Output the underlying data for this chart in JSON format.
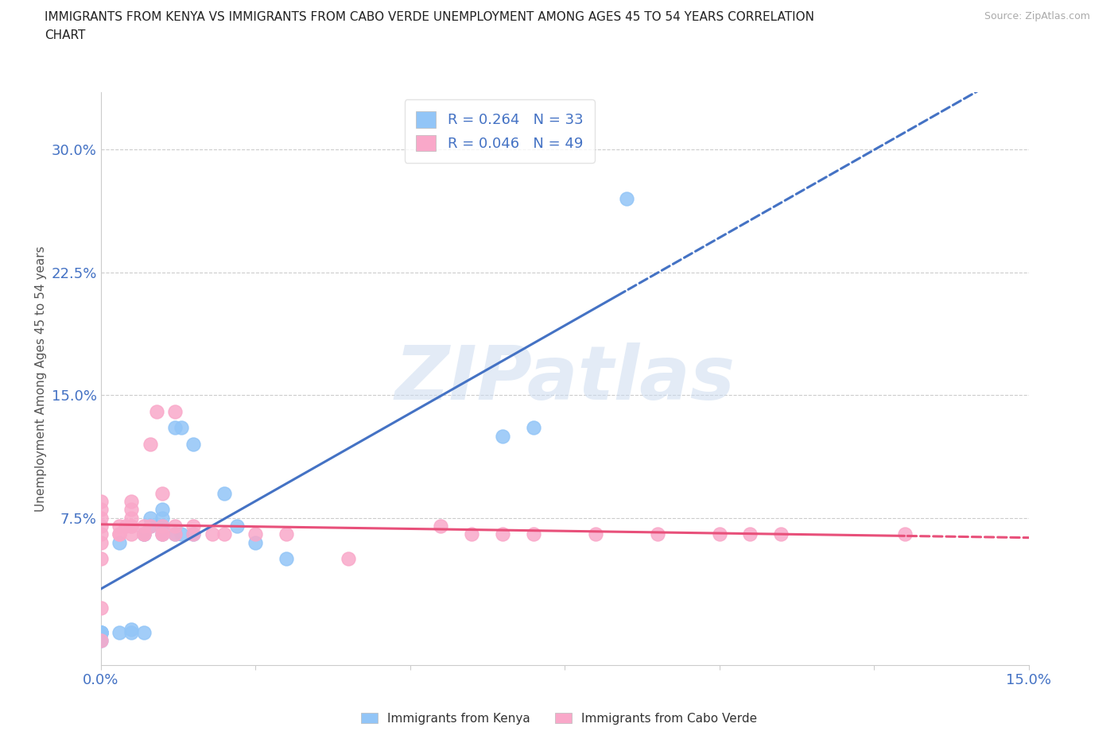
{
  "title_line1": "IMMIGRANTS FROM KENYA VS IMMIGRANTS FROM CABO VERDE UNEMPLOYMENT AMONG AGES 45 TO 54 YEARS CORRELATION",
  "title_line2": "CHART",
  "source": "Source: ZipAtlas.com",
  "ylabel": "Unemployment Among Ages 45 to 54 years",
  "xlim": [
    0.0,
    0.15
  ],
  "ylim": [
    -0.015,
    0.335
  ],
  "yticks": [
    0.075,
    0.15,
    0.225,
    0.3
  ],
  "ytick_labels": [
    "7.5%",
    "15.0%",
    "22.5%",
    "30.0%"
  ],
  "xticks": [
    0.0,
    0.025,
    0.05,
    0.075,
    0.1,
    0.125,
    0.15
  ],
  "xtick_labels": [
    "0.0%",
    "",
    "",
    "",
    "",
    "",
    "15.0%"
  ],
  "kenya_color": "#92c5f7",
  "cabo_color": "#f9a8c9",
  "kenya_line_color": "#4472c4",
  "cabo_line_color": "#e8507a",
  "kenya_R": 0.264,
  "kenya_N": 33,
  "cabo_R": 0.046,
  "cabo_N": 49,
  "kenya_label": "Immigrants from Kenya",
  "cabo_label": "Immigrants from Cabo Verde",
  "watermark": "ZIPatlas",
  "watermark_color": "#ccdcf0",
  "kenya_x": [
    0.0,
    0.0,
    0.0,
    0.0,
    0.0,
    0.0,
    0.003,
    0.003,
    0.005,
    0.005,
    0.007,
    0.007,
    0.007,
    0.008,
    0.008,
    0.01,
    0.01,
    0.01,
    0.01,
    0.01,
    0.012,
    0.012,
    0.013,
    0.013,
    0.015,
    0.015,
    0.02,
    0.022,
    0.025,
    0.03,
    0.065,
    0.07,
    0.085
  ],
  "kenya_y": [
    0.0,
    0.005,
    0.005,
    0.005,
    0.005,
    0.005,
    0.005,
    0.06,
    0.005,
    0.007,
    0.005,
    0.065,
    0.065,
    0.07,
    0.075,
    0.065,
    0.07,
    0.07,
    0.075,
    0.08,
    0.065,
    0.13,
    0.13,
    0.065,
    0.065,
    0.12,
    0.09,
    0.07,
    0.06,
    0.05,
    0.125,
    0.13,
    0.27
  ],
  "cabo_x": [
    0.0,
    0.0,
    0.0,
    0.0,
    0.0,
    0.0,
    0.0,
    0.0,
    0.0,
    0.003,
    0.003,
    0.003,
    0.004,
    0.005,
    0.005,
    0.005,
    0.005,
    0.005,
    0.005,
    0.007,
    0.007,
    0.007,
    0.008,
    0.008,
    0.009,
    0.01,
    0.01,
    0.01,
    0.01,
    0.012,
    0.012,
    0.012,
    0.015,
    0.015,
    0.018,
    0.02,
    0.025,
    0.03,
    0.04,
    0.055,
    0.06,
    0.065,
    0.07,
    0.08,
    0.09,
    0.1,
    0.105,
    0.11,
    0.13
  ],
  "cabo_y": [
    0.0,
    0.02,
    0.05,
    0.06,
    0.065,
    0.07,
    0.075,
    0.08,
    0.085,
    0.065,
    0.065,
    0.07,
    0.07,
    0.065,
    0.07,
    0.07,
    0.075,
    0.08,
    0.085,
    0.065,
    0.065,
    0.07,
    0.07,
    0.12,
    0.14,
    0.065,
    0.065,
    0.07,
    0.09,
    0.065,
    0.07,
    0.14,
    0.065,
    0.07,
    0.065,
    0.065,
    0.065,
    0.065,
    0.05,
    0.07,
    0.065,
    0.065,
    0.065,
    0.065,
    0.065,
    0.065,
    0.065,
    0.065,
    0.065
  ]
}
